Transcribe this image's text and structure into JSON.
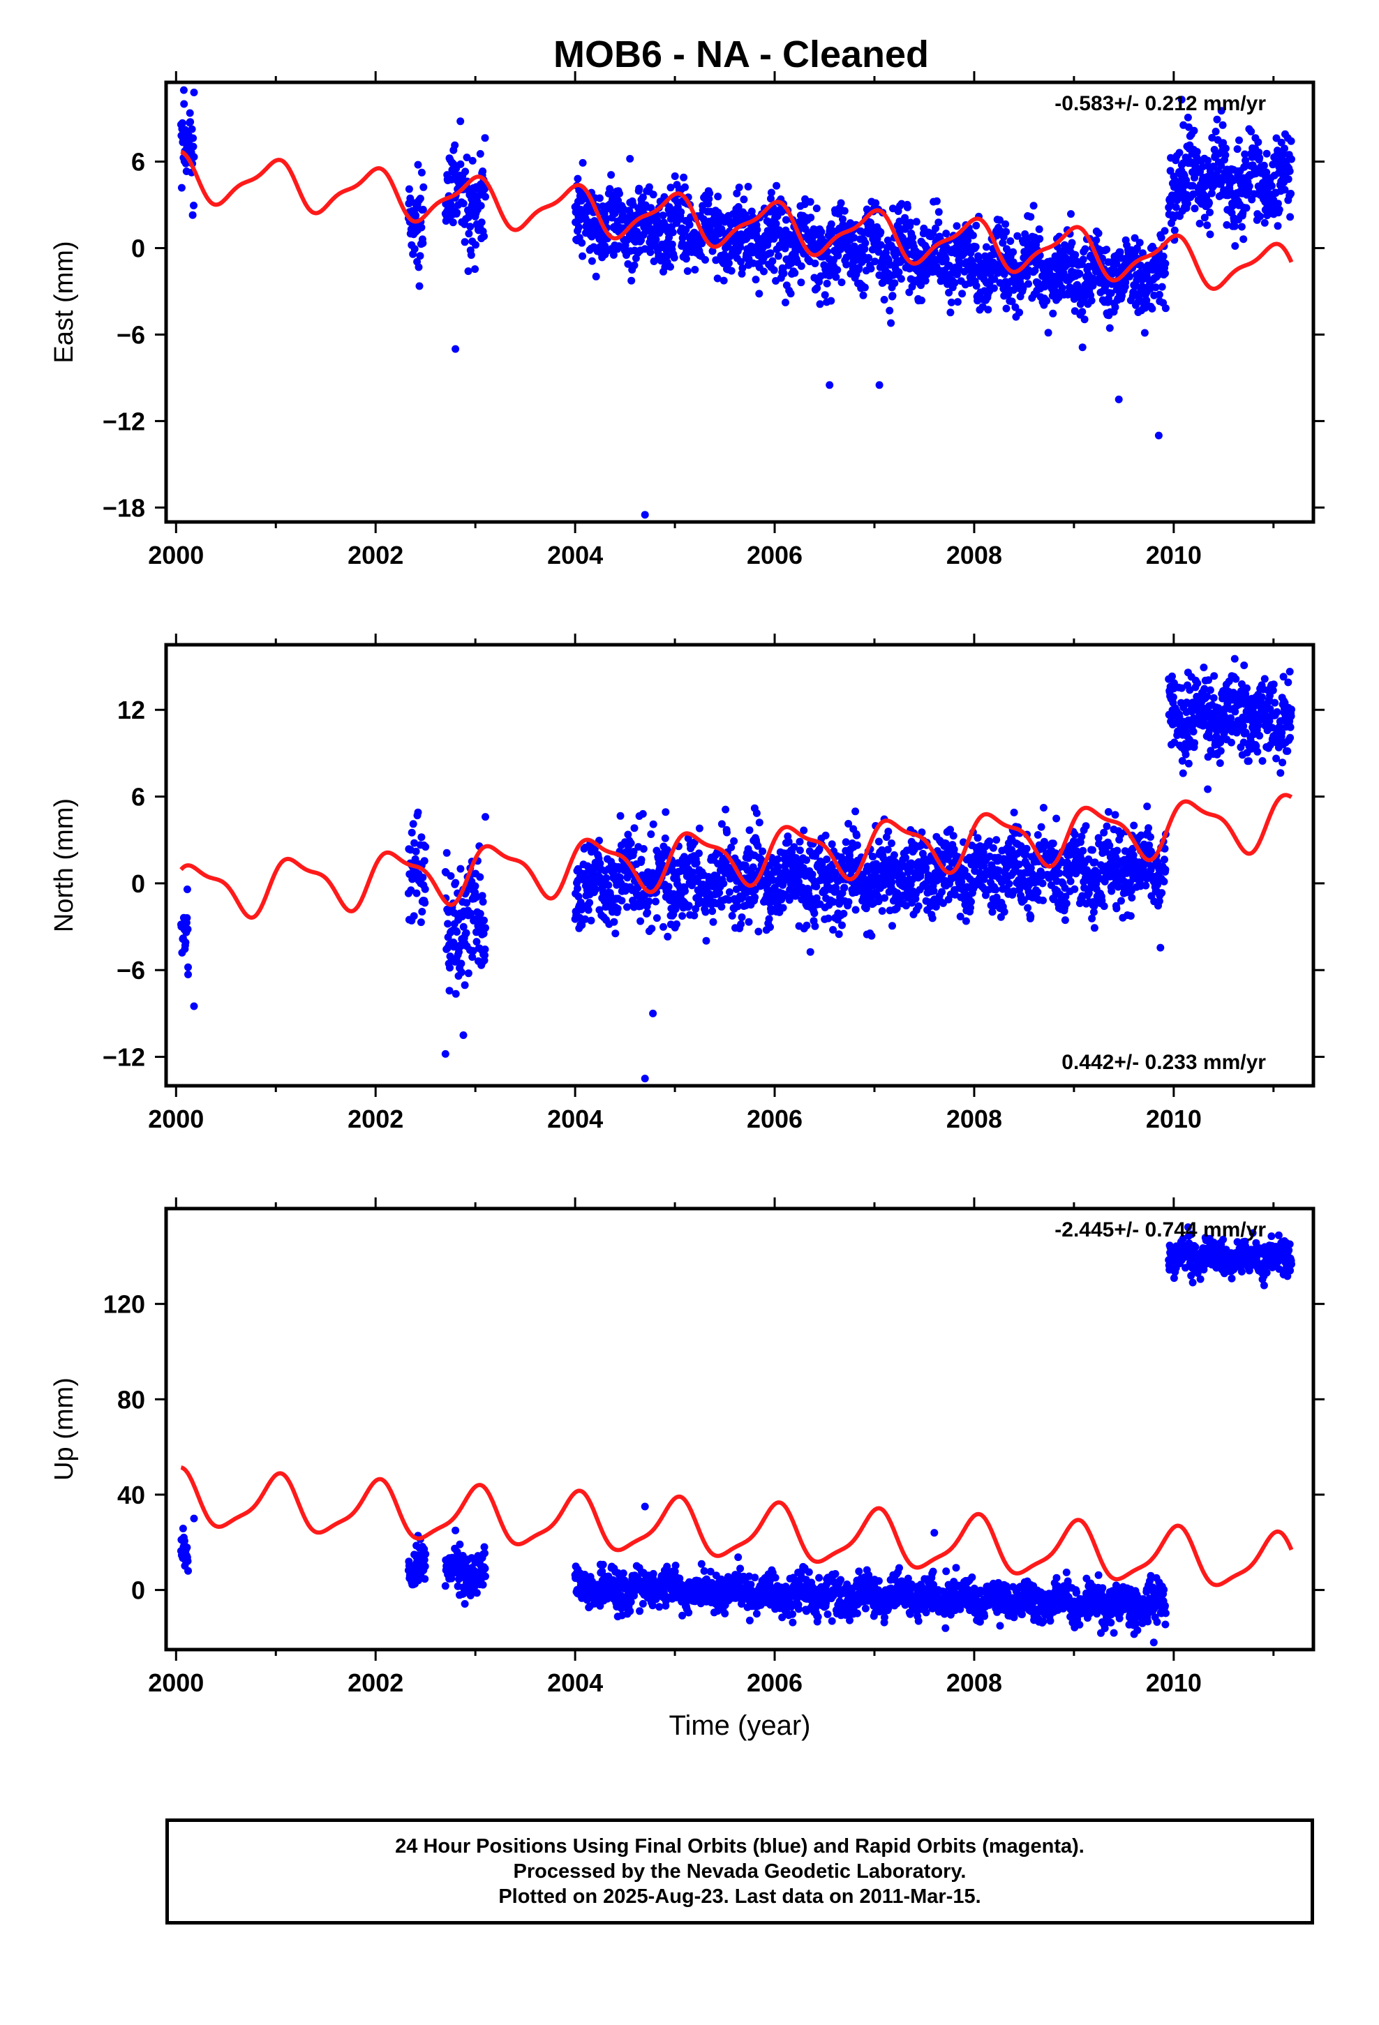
{
  "title": "MOB6  - NA - Cleaned",
  "footer": {
    "line1": "24 Hour Positions Using Final Orbits (blue) and Rapid Orbits (magenta).",
    "line2": "Processed by the Nevada Geodetic Laboratory.",
    "line3": "Plotted on 2025-Aug-23. Last data on 2011-Mar-15."
  },
  "colors": {
    "data": "#0000ff",
    "model": "#ff1a1a",
    "frame": "#000000"
  },
  "chart_data": [
    {
      "type": "scatter",
      "ylabel": "East (mm)",
      "xlabel": "",
      "rate_label": "-0.583+/- 0.212 mm/yr",
      "rate_position": "top-right",
      "xlim": [
        1999.9,
        2011.4
      ],
      "ylim": [
        -19,
        11.5
      ],
      "xticks": [
        2000,
        2002,
        2004,
        2006,
        2008,
        2010
      ],
      "xtick_labels": [
        "2000",
        "2002",
        "2004",
        "2006",
        "2008",
        "2010"
      ],
      "yticks": [
        6,
        0,
        -6,
        -12,
        -18
      ],
      "ytick_labels": [
        "6",
        "0",
        "−6",
        "−12",
        "−18"
      ],
      "grid": false,
      "segments": [
        {
          "start": 2000.05,
          "end": 2000.18,
          "trend": [
            6.5,
            6.5
          ],
          "amp": 1.6,
          "seed": 1
        },
        {
          "start": 2002.33,
          "end": 2002.48,
          "trend": [
            2.7,
            2.7
          ],
          "amp": 1.6,
          "seed": 2
        },
        {
          "start": 2002.7,
          "end": 2003.1,
          "trend": [
            3.5,
            3.5
          ],
          "amp": 1.6,
          "seed": 3
        },
        {
          "start": 2004.0,
          "end": 2009.92,
          "trend": [
            2.0,
            -2.3
          ],
          "amp": 1.3,
          "seed": 4
        },
        {
          "start": 2009.95,
          "end": 2011.18,
          "trend": [
            4.5,
            4.5
          ],
          "amp": 1.5,
          "seed": 5
        }
      ],
      "outliers": [
        [
          2004.7,
          -18.5
        ],
        [
          2009.85,
          -13.0
        ],
        [
          2009.45,
          -10.5
        ],
        [
          2006.55,
          -9.5
        ],
        [
          2007.05,
          -9.5
        ],
        [
          2002.8,
          -7.0
        ],
        [
          2010.08,
          10.3
        ],
        [
          2000.18,
          10.8
        ],
        [
          2000.08,
          10.0
        ],
        [
          2002.85,
          8.8
        ],
        [
          2004.55,
          6.2
        ]
      ],
      "model": {
        "c0": 5.0,
        "slope": -0.583,
        "a1": 1.5,
        "phase1": 1.8,
        "a2": 0.5,
        "phase2": 0.4,
        "t0": 2000.0,
        "start": 2000.05,
        "end": 2011.18
      }
    },
    {
      "type": "scatter",
      "ylabel": "North (mm)",
      "xlabel": "",
      "rate_label": "0.442+/- 0.233 mm/yr",
      "rate_position": "bottom-right",
      "xlim": [
        1999.9,
        2011.4
      ],
      "ylim": [
        -14,
        16.5
      ],
      "xticks": [
        2000,
        2002,
        2004,
        2006,
        2008,
        2010
      ],
      "xtick_labels": [
        "2000",
        "2002",
        "2004",
        "2006",
        "2008",
        "2010"
      ],
      "yticks": [
        12,
        6,
        0,
        -6,
        -12
      ],
      "ytick_labels": [
        "12",
        "6",
        "0",
        "−6",
        "−12"
      ],
      "grid": false,
      "segments": [
        {
          "start": 2000.05,
          "end": 2000.12,
          "trend": [
            -3.5,
            -3.5
          ],
          "amp": 1.5,
          "seed": 11
        },
        {
          "start": 2002.33,
          "end": 2002.5,
          "trend": [
            0.5,
            0.5
          ],
          "amp": 1.5,
          "seed": 12
        },
        {
          "start": 2002.7,
          "end": 2003.1,
          "trend": [
            -2.5,
            -2.5
          ],
          "amp": 2.0,
          "seed": 13
        },
        {
          "start": 2004.0,
          "end": 2009.92,
          "trend": [
            0.0,
            1.0
          ],
          "amp": 1.4,
          "seed": 14
        },
        {
          "start": 2009.95,
          "end": 2011.18,
          "trend": [
            12.0,
            11.0
          ],
          "amp": 1.3,
          "seed": 15
        }
      ],
      "outliers": [
        [
          2004.7,
          -13.5
        ],
        [
          2002.7,
          -11.8
        ],
        [
          2002.88,
          -10.5
        ],
        [
          2004.78,
          -9.0
        ],
        [
          2000.18,
          -8.5
        ],
        [
          2000.12,
          -5.8
        ],
        [
          2004.68,
          4.8
        ],
        [
          2005.8,
          5.2
        ],
        [
          2008.4,
          4.9
        ],
        [
          2003.1,
          4.6
        ]
      ],
      "model": {
        "c0": -0.5,
        "slope": 0.442,
        "a1": 1.7,
        "phase1": 0.2,
        "a2": 0.6,
        "phase2": 1.1,
        "t0": 2000.0,
        "start": 2000.05,
        "end": 2011.18
      }
    },
    {
      "type": "scatter",
      "ylabel": "Up (mm)",
      "xlabel": "Time (year)",
      "rate_label": "-2.445+/- 0.744 mm/yr",
      "rate_position": "top-right",
      "xlim": [
        1999.9,
        2011.4
      ],
      "ylim": [
        -25,
        160
      ],
      "xticks": [
        2000,
        2002,
        2004,
        2006,
        2008,
        2010
      ],
      "xtick_labels": [
        "2000",
        "2002",
        "2004",
        "2006",
        "2008",
        "2010"
      ],
      "yticks": [
        120,
        80,
        40,
        0
      ],
      "ytick_labels": [
        "120",
        "80",
        "40",
        "0"
      ],
      "grid": false,
      "segments": [
        {
          "start": 2000.05,
          "end": 2000.12,
          "trend": [
            18,
            18
          ],
          "amp": 4.0,
          "seed": 21
        },
        {
          "start": 2002.33,
          "end": 2002.5,
          "trend": [
            10,
            10
          ],
          "amp": 4.0,
          "seed": 22
        },
        {
          "start": 2002.7,
          "end": 2003.1,
          "trend": [
            8,
            8
          ],
          "amp": 4.0,
          "seed": 23
        },
        {
          "start": 2004.0,
          "end": 2009.92,
          "trend": [
            1,
            -6
          ],
          "amp": 4.0,
          "seed": 24
        },
        {
          "start": 2009.95,
          "end": 2011.18,
          "trend": [
            140,
            140
          ],
          "amp": 3.5,
          "seed": 25
        }
      ],
      "outliers": [
        [
          2000.18,
          30
        ],
        [
          2002.8,
          25
        ],
        [
          2004.7,
          35
        ],
        [
          2007.6,
          24
        ],
        [
          2009.8,
          -22
        ],
        [
          2009.4,
          -18
        ]
      ],
      "model": {
        "c0": 38,
        "slope": -2.445,
        "a1": 11,
        "phase1": 1.5,
        "a2": 3,
        "phase2": 0.6,
        "t0": 2000.0,
        "start": 2000.05,
        "end": 2011.18
      }
    }
  ]
}
